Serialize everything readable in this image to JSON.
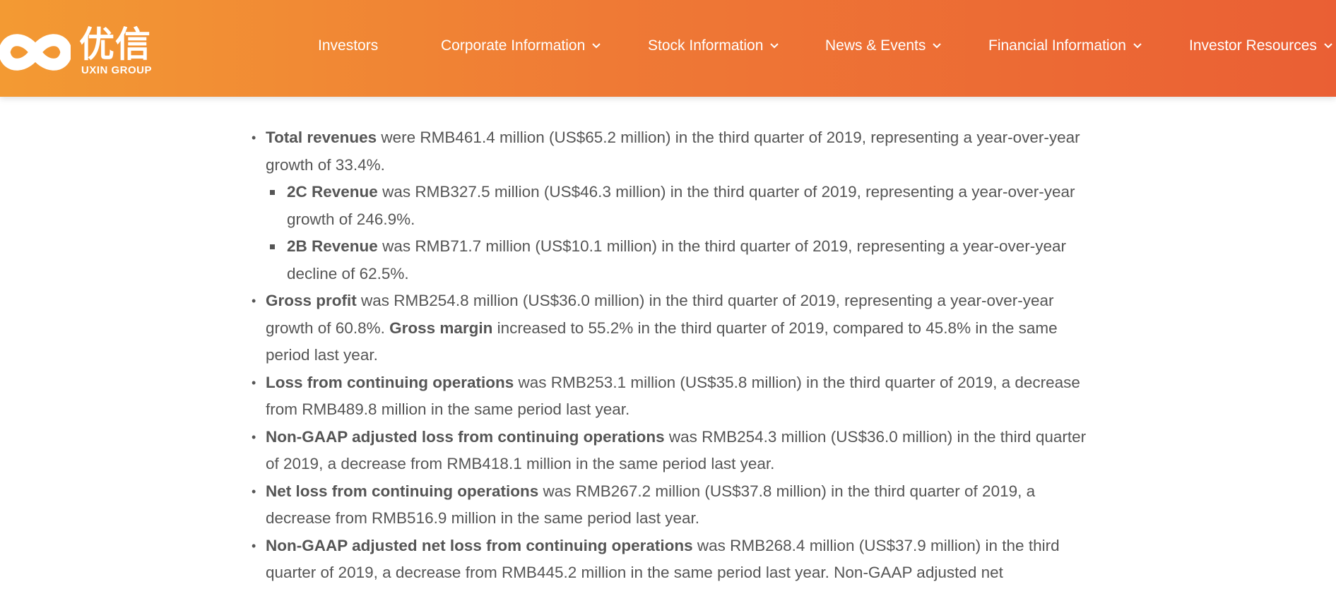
{
  "colors": {
    "header_start": "#f39a33",
    "header_end": "#ea5f34",
    "text": "#555555"
  },
  "logo": {
    "cn": "优信",
    "en": "UXIN GROUP"
  },
  "nav": [
    {
      "label": "Investors",
      "dropdown": false
    },
    {
      "label": "Corporate Information",
      "dropdown": true
    },
    {
      "label": "Stock Information",
      "dropdown": true
    },
    {
      "label": "News & Events",
      "dropdown": true
    },
    {
      "label": "Financial Information",
      "dropdown": true
    },
    {
      "label": "Investor Resources",
      "dropdown": true
    }
  ],
  "highlights": {
    "total_revenues": {
      "bold": "Total revenues",
      "text": " were RMB461.4 million (US$65.2 million) in the third quarter of 2019, representing a year-over-year growth of 33.4%."
    },
    "rev_2c": {
      "bold": "2C Revenue",
      "text": " was RMB327.5 million (US$46.3 million) in the third quarter of 2019, representing a year-over-year growth of 246.9%."
    },
    "rev_2b": {
      "bold": "2B Revenue",
      "text": " was RMB71.7 million (US$10.1 million) in the third quarter of 2019, representing a year-over-year decline of 62.5%."
    },
    "gross_profit": {
      "bold": "Gross profit",
      "text": " was RMB254.8 million (US$36.0 million) in the third quarter of 2019, representing a year-over-year growth of 60.8%. ",
      "bold2": "Gross margin",
      "text2": " increased to 55.2% in the third quarter of 2019, compared to 45.8% in the same period last year."
    },
    "loss_cont": {
      "bold": "Loss from continuing operations",
      "text": " was RMB253.1 million (US$35.8 million) in the third quarter of 2019, a decrease from RMB489.8 million in the same period last year."
    },
    "nongaap_loss": {
      "bold": "Non-GAAP adjusted loss from continuing operations",
      "text": " was RMB254.3 million (US$36.0 million) in the third quarter of 2019, a decrease from RMB418.1 million in the same period last year."
    },
    "net_loss": {
      "bold": "Net loss from continuing operations",
      "text": " was RMB267.2 million (US$37.8 million) in the third quarter of 2019, a decrease from RMB516.9 million in the same period last year."
    },
    "nongaap_net_loss": {
      "bold": "Non-GAAP adjusted net loss from continuing operations",
      "text": " was RMB268.4 million (US$37.9 million) in the third quarter of 2019, a decrease from RMB445.2 million in the same period last year. Non-GAAP adjusted net"
    }
  }
}
